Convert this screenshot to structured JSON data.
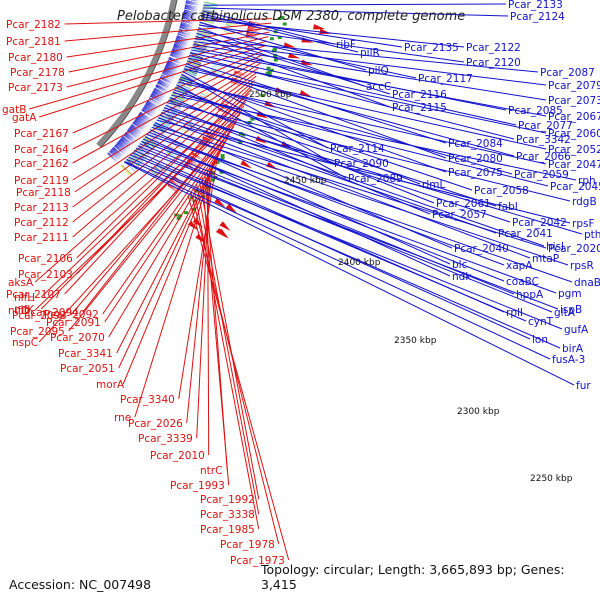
{
  "title": "Pelobacter carbinolicus DSM 2380, complete genome",
  "accession": "Accession: NC_007498",
  "topology": "Topology: circular; Length: 3,665,893 bp; Genes: 3,415",
  "colors": {
    "reverse": "#dd1111",
    "forward": "#1111cc",
    "backbone": "#888888"
  },
  "kbp_labels": [
    "2500 kbp",
    "2450 kbp",
    "2400 kbp",
    "2350 kbp",
    "2300 kbp",
    "2250 kbp"
  ],
  "left_labels": [
    "Pcar_2182",
    "Pcar_2181",
    "Pcar_2180",
    "Pcar_2178",
    "Pcar_2173",
    "gatB",
    "gatA",
    "Pcar_2167",
    "Pcar_2164",
    "Pcar_2162",
    "Pcar_2119",
    "Pcar_2118",
    "Pcar_2113",
    "Pcar_2112",
    "Pcar_2111",
    "Pcar_2106",
    "Pcar_2103",
    "aksA",
    "Pcar_2107",
    "nifH",
    "nifK",
    "Pcar_2094",
    "nifD",
    "Pcar_2093",
    "Pcar_2092",
    "Pcar_2095",
    "nspC",
    "Pcar_2091",
    "Pcar_2070",
    "Pcar_3341",
    "Pcar_2051",
    "morA",
    "Pcar_3340",
    "rne",
    "Pcar_2026",
    "Pcar_3339",
    "Pcar_2010",
    "ntrC",
    "Pcar_1993",
    "Pcar_1992",
    "Pcar_3338",
    "Pcar_1985",
    "Pcar_1978",
    "Pcar_1973"
  ],
  "right_labels": [
    "Pcar_2133",
    "Pcar_2124",
    "ribF",
    "pilR",
    "Pcar_2135",
    "Pcar_2122",
    "pilQ",
    "Pcar_2120",
    "accC",
    "Pcar_2117",
    "Pcar_2116",
    "Pcar_2115",
    "Pcar_2087",
    "Pcar_2079",
    "Pcar_2073",
    "Pcar_2085",
    "Pcar_2067",
    "Pcar_2077",
    "Pcar_3342",
    "Pcar_2060",
    "Pcar_2084",
    "Pcar_2080",
    "Pcar_2066",
    "Pcar_2052",
    "Pcar_2114",
    "Pcar_2090",
    "Pcar_2075",
    "Pcar_2059",
    "Pcar_2047",
    "Pcar_2089",
    "rlmL",
    "Pcar_2058",
    "Pcar_2045",
    "rph",
    "Pcar_2061",
    "fabI",
    "rdgB",
    "Pcar_2057",
    "Pcar_2042",
    "pth",
    "hisI",
    "Pcar_2041",
    "mtaP",
    "rpsF",
    "Pcar_2040",
    "Pcar_2020",
    "rpsR",
    "blc",
    "xapA",
    "dnaB",
    "ndk",
    "coaBC",
    "pgm",
    "hppA",
    "gltA",
    "ispB",
    "rplI",
    "cynT",
    "gufA",
    "lon",
    "birA",
    "fusA-3",
    "fur"
  ]
}
